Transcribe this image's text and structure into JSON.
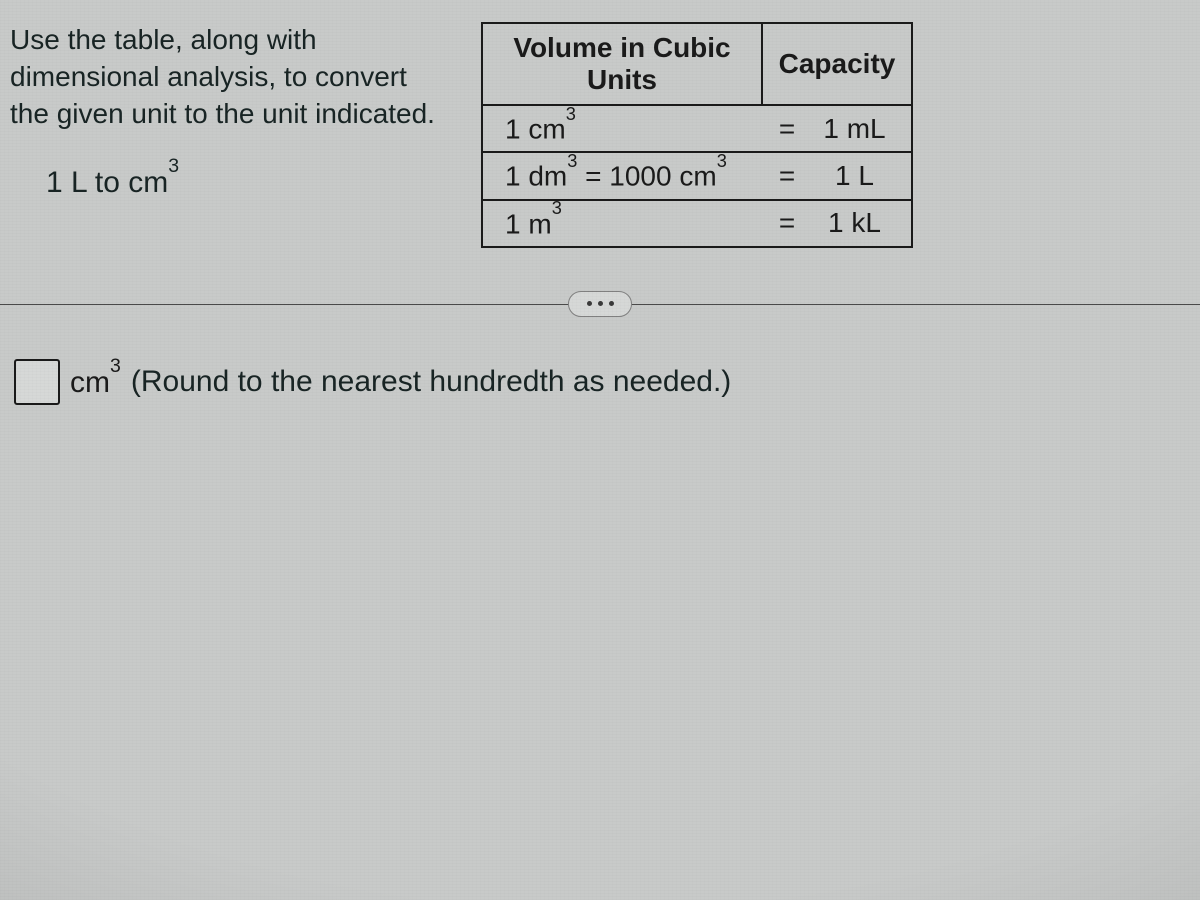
{
  "instructions": "Use the table, along with dimensional analysis, to convert the given unit to the unit indicated.",
  "problem": {
    "prefix": "1 L to cm",
    "exp": "3"
  },
  "table": {
    "header_volume": "Volume in Cubic Units",
    "header_capacity": "Capacity",
    "rows": [
      {
        "volume_prefix": "1 cm",
        "volume_exp": "3",
        "volume_suffix": "",
        "eq": "=",
        "capacity": "1 mL"
      },
      {
        "volume_prefix": "1 dm",
        "volume_exp": "3",
        "volume_suffix": " = 1000 cm",
        "volume_exp2": "3",
        "eq": "=",
        "capacity": "1 L"
      },
      {
        "volume_prefix": "1 m",
        "volume_exp": "3",
        "volume_suffix": "",
        "eq": "=",
        "capacity": "1 kL"
      }
    ]
  },
  "answer": {
    "unit_prefix": "cm",
    "unit_exp": "3",
    "hint": " (Round to the nearest hundredth as needed.)"
  }
}
